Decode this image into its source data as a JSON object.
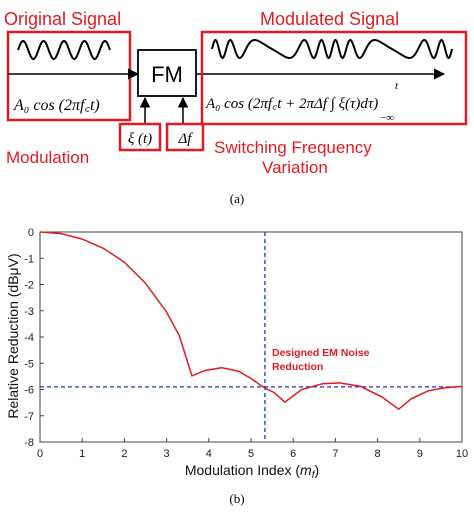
{
  "panel_a": {
    "original_signal_label": "Original Signal",
    "modulated_signal_label": "Modulated Signal",
    "fm_label": "FM",
    "original_formula": "A₀ cos (2πf꜀t)",
    "modulated_formula": "A₀ cos (2πf꜀t + 2πΔf ∫ ξ(τ)dτ)",
    "integral_upper": "t",
    "integral_lower": "−∞",
    "modulation_input": "ξ (t)",
    "deviation_input": "Δf",
    "modulation_label": "Modulation",
    "switching_label_1": "Switching Frequency",
    "switching_label_2": "Variation",
    "caption": "(a)"
  },
  "panel_b": {
    "caption": "(b)",
    "annotation_1": "Designed EM Noise",
    "annotation_2": "Reduction"
  },
  "colors": {
    "red": "#e11b22",
    "blue": "#1f2fd6",
    "axis": "#333333",
    "grid": "#d9d9d9"
  },
  "chart_data": {
    "type": "line",
    "xlabel": "Modulation Index (m_f)",
    "ylabel": "Relative Reduction (dBμV)",
    "xlim": [
      0,
      10
    ],
    "ylim": [
      -8,
      0
    ],
    "xticks": [
      0,
      1,
      2,
      3,
      4,
      5,
      6,
      7,
      8,
      9,
      10
    ],
    "yticks": [
      0,
      -1,
      -2,
      -3,
      -4,
      -5,
      -6,
      -7,
      -8
    ],
    "series": [
      {
        "color": "#e11b22",
        "x": [
          0,
          0.5,
          1,
          1.5,
          2,
          2.5,
          3,
          3.3,
          3.6,
          3.9,
          4.3,
          4.7,
          5.0,
          5.3,
          5.55,
          5.8,
          6.2,
          6.7,
          7.1,
          7.6,
          8.1,
          8.5,
          8.8,
          9.2,
          9.6,
          10
        ],
        "y": [
          0,
          -0.06,
          -0.27,
          -0.62,
          -1.15,
          -1.95,
          -3.05,
          -3.95,
          -5.48,
          -5.28,
          -5.17,
          -5.3,
          -5.58,
          -5.92,
          -6.12,
          -6.48,
          -6.0,
          -5.78,
          -5.75,
          -5.88,
          -6.28,
          -6.75,
          -6.35,
          -6.05,
          -5.93,
          -5.88
        ]
      }
    ],
    "reference_lines": {
      "horizontal_y": -5.9,
      "vertical_x": 5.33
    },
    "grid": false
  }
}
